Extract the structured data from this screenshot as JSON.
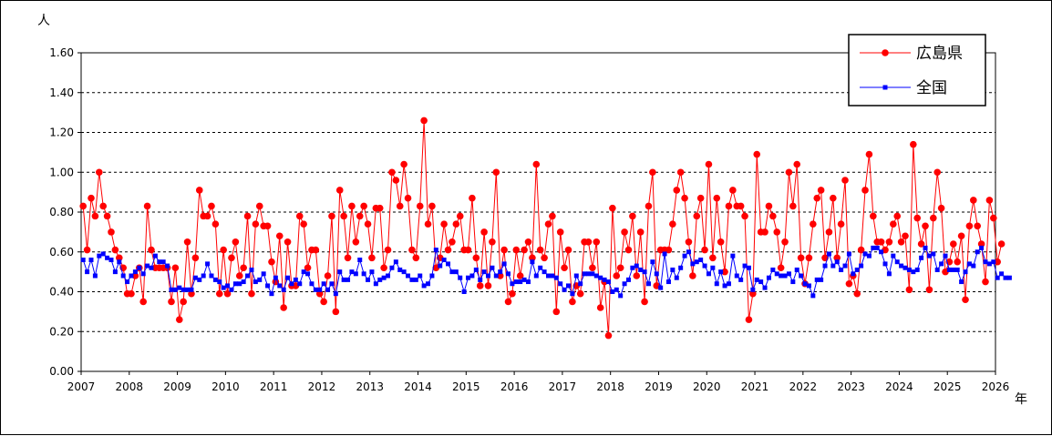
{
  "chart_data": {
    "type": "line",
    "y_unit": "人",
    "x_unit": "年",
    "ylim": [
      0,
      1.6
    ],
    "ytick_labels": [
      "0.00",
      "0.20",
      "0.40",
      "0.60",
      "0.80",
      "1.00",
      "1.20",
      "1.40",
      "1.60"
    ],
    "xtick_labels": [
      "2007",
      "2008",
      "2009",
      "2010",
      "2011",
      "2012",
      "2013",
      "2014",
      "2015",
      "2016",
      "2017",
      "2018",
      "2019",
      "2020",
      "2021",
      "2022",
      "2023",
      "2024",
      "2025",
      "2026"
    ],
    "x_start_year": 2007,
    "points_per_year": 12,
    "grid": "horizontal dashed",
    "legend_position": "top-right",
    "series": [
      {
        "name": "広島県",
        "color": "#ff0000",
        "marker": "circle",
        "values": [
          0.83,
          0.61,
          0.87,
          0.78,
          1.0,
          0.83,
          0.78,
          0.7,
          0.61,
          0.57,
          0.52,
          0.39,
          0.39,
          0.48,
          0.52,
          0.35,
          0.83,
          0.61,
          0.52,
          0.52,
          0.52,
          0.52,
          0.35,
          0.52,
          0.26,
          0.35,
          0.65,
          0.39,
          0.57,
          0.91,
          0.78,
          0.78,
          0.83,
          0.74,
          0.39,
          0.61,
          0.39,
          0.57,
          0.65,
          0.48,
          0.52,
          0.78,
          0.39,
          0.74,
          0.83,
          0.73,
          0.73,
          0.55,
          0.45,
          0.68,
          0.32,
          0.65,
          0.43,
          0.43,
          0.78,
          0.74,
          0.52,
          0.61,
          0.61,
          0.39,
          0.35,
          0.48,
          0.78,
          0.3,
          0.91,
          0.78,
          0.57,
          0.83,
          0.65,
          0.78,
          0.83,
          0.74,
          0.57,
          0.82,
          0.82,
          0.52,
          0.61,
          1.0,
          0.96,
          0.83,
          1.04,
          0.87,
          0.61,
          0.57,
          0.83,
          1.26,
          0.74,
          0.83,
          0.52,
          0.57,
          0.74,
          0.61,
          0.65,
          0.74,
          0.78,
          0.61,
          0.61,
          0.87,
          0.57,
          0.43,
          0.7,
          0.43,
          0.65,
          1.0,
          0.48,
          0.61,
          0.35,
          0.39,
          0.61,
          0.48,
          0.61,
          0.65,
          0.57,
          1.04,
          0.61,
          0.57,
          0.74,
          0.78,
          0.3,
          0.7,
          0.52,
          0.61,
          0.35,
          0.43,
          0.39,
          0.65,
          0.65,
          0.52,
          0.65,
          0.32,
          0.45,
          0.18,
          0.82,
          0.48,
          0.52,
          0.7,
          0.61,
          0.78,
          0.48,
          0.7,
          0.35,
          0.83,
          1.0,
          0.43,
          0.61,
          0.61,
          0.61,
          0.74,
          0.91,
          1.0,
          0.87,
          0.65,
          0.48,
          0.78,
          0.87,
          0.61,
          1.04,
          0.57,
          0.87,
          0.65,
          0.5,
          0.83,
          0.91,
          0.83,
          0.83,
          0.78,
          0.26,
          0.39,
          1.09,
          0.7,
          0.7,
          0.83,
          0.78,
          0.7,
          0.52,
          0.65,
          1.0,
          0.83,
          1.04,
          0.57,
          0.44,
          0.57,
          0.74,
          0.87,
          0.91,
          0.57,
          0.7,
          0.87,
          0.57,
          0.74,
          0.96,
          0.44,
          0.48,
          0.39,
          0.61,
          0.91,
          1.09,
          0.78,
          0.65,
          0.65,
          0.61,
          0.65,
          0.74,
          0.78,
          0.65,
          0.68,
          0.41,
          1.14,
          0.77,
          0.64,
          0.73,
          0.41,
          0.77,
          1.0,
          0.82,
          0.5,
          0.55,
          0.64,
          0.55,
          0.68,
          0.36,
          0.73,
          0.86,
          0.73,
          0.64,
          0.45,
          0.86,
          0.77,
          0.55,
          0.64
        ]
      },
      {
        "name": "全国",
        "color": "#0000ff",
        "marker": "square",
        "values": [
          0.56,
          0.5,
          0.56,
          0.48,
          0.58,
          0.59,
          0.57,
          0.56,
          0.5,
          0.55,
          0.48,
          0.45,
          0.48,
          0.5,
          0.52,
          0.49,
          0.53,
          0.52,
          0.58,
          0.55,
          0.55,
          0.53,
          0.41,
          0.41,
          0.42,
          0.41,
          0.41,
          0.41,
          0.47,
          0.46,
          0.48,
          0.54,
          0.48,
          0.46,
          0.45,
          0.42,
          0.43,
          0.41,
          0.44,
          0.44,
          0.45,
          0.48,
          0.51,
          0.45,
          0.46,
          0.49,
          0.43,
          0.39,
          0.47,
          0.43,
          0.41,
          0.47,
          0.44,
          0.46,
          0.44,
          0.5,
          0.49,
          0.44,
          0.41,
          0.41,
          0.44,
          0.41,
          0.44,
          0.39,
          0.5,
          0.46,
          0.46,
          0.5,
          0.49,
          0.56,
          0.49,
          0.46,
          0.5,
          0.44,
          0.46,
          0.47,
          0.48,
          0.52,
          0.55,
          0.51,
          0.5,
          0.48,
          0.46,
          0.46,
          0.48,
          0.43,
          0.44,
          0.48,
          0.61,
          0.53,
          0.56,
          0.54,
          0.5,
          0.5,
          0.47,
          0.4,
          0.47,
          0.48,
          0.51,
          0.46,
          0.5,
          0.48,
          0.52,
          0.48,
          0.5,
          0.54,
          0.49,
          0.44,
          0.45,
          0.45,
          0.46,
          0.45,
          0.55,
          0.48,
          0.52,
          0.5,
          0.48,
          0.48,
          0.47,
          0.44,
          0.41,
          0.43,
          0.39,
          0.48,
          0.44,
          0.49,
          0.49,
          0.49,
          0.48,
          0.47,
          0.46,
          0.45,
          0.4,
          0.41,
          0.38,
          0.44,
          0.46,
          0.52,
          0.53,
          0.51,
          0.5,
          0.44,
          0.55,
          0.49,
          0.42,
          0.59,
          0.45,
          0.51,
          0.47,
          0.52,
          0.58,
          0.6,
          0.54,
          0.55,
          0.56,
          0.53,
          0.49,
          0.52,
          0.44,
          0.5,
          0.43,
          0.44,
          0.58,
          0.48,
          0.46,
          0.53,
          0.52,
          0.41,
          0.46,
          0.45,
          0.42,
          0.47,
          0.51,
          0.49,
          0.48,
          0.48,
          0.49,
          0.45,
          0.51,
          0.48,
          0.44,
          0.43,
          0.38,
          0.46,
          0.46,
          0.53,
          0.59,
          0.53,
          0.55,
          0.51,
          0.53,
          0.59,
          0.49,
          0.51,
          0.53,
          0.59,
          0.58,
          0.62,
          0.62,
          0.6,
          0.54,
          0.49,
          0.58,
          0.55,
          0.53,
          0.52,
          0.51,
          0.5,
          0.51,
          0.57,
          0.62,
          0.58,
          0.59,
          0.51,
          0.54,
          0.58,
          0.51,
          0.51,
          0.51,
          0.45,
          0.5,
          0.54,
          0.53,
          0.6,
          0.62,
          0.55,
          0.54,
          0.55,
          0.47,
          0.49,
          0.47,
          0.47
        ]
      }
    ]
  }
}
